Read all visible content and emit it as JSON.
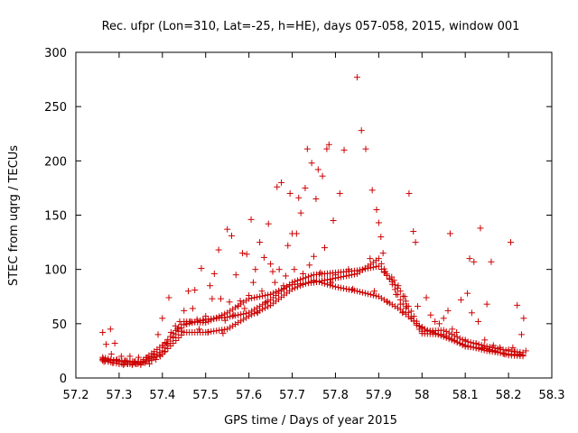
{
  "chart_data": {
    "type": "scatter",
    "title": "Rec. ufpr (Lon=310, Lat=-25, h=HE), days 057-058, 2015, window 001",
    "xlabel": "GPS time / Days of year 2015",
    "ylabel": "STEC from uqrg / TECUs",
    "xlim": [
      57.2,
      58.3
    ],
    "ylim": [
      0,
      300
    ],
    "x_ticks": [
      "57.2",
      "57.3",
      "57.4",
      "57.5",
      "57.6",
      "57.7",
      "57.8",
      "57.9",
      "58",
      "58.1",
      "58.2",
      "58.3"
    ],
    "y_ticks": [
      "0",
      "50",
      "100",
      "150",
      "200",
      "250",
      "300"
    ],
    "grid": false,
    "legend": "none",
    "marker": "plus",
    "color": "#cc0000",
    "points": [
      [
        57.262,
        42
      ],
      [
        57.263,
        18
      ],
      [
        57.265,
        15
      ],
      [
        57.27,
        31
      ],
      [
        57.275,
        16
      ],
      [
        57.28,
        45
      ],
      [
        57.282,
        22
      ],
      [
        57.285,
        14
      ],
      [
        57.29,
        32
      ],
      [
        57.295,
        17
      ],
      [
        57.3,
        13
      ],
      [
        57.305,
        20
      ],
      [
        57.31,
        12
      ],
      [
        57.315,
        16
      ],
      [
        57.32,
        13
      ],
      [
        57.325,
        20
      ],
      [
        57.33,
        12
      ],
      [
        57.335,
        15
      ],
      [
        57.34,
        13
      ],
      [
        57.345,
        19
      ],
      [
        57.35,
        12
      ],
      [
        57.355,
        15
      ],
      [
        57.36,
        14
      ],
      [
        57.365,
        19
      ],
      [
        57.37,
        13
      ],
      [
        57.375,
        16
      ],
      [
        57.38,
        22
      ],
      [
        57.385,
        17
      ],
      [
        57.39,
        40
      ],
      [
        57.395,
        20
      ],
      [
        57.4,
        55
      ],
      [
        57.402,
        30
      ],
      [
        57.405,
        24
      ],
      [
        57.41,
        32
      ],
      [
        57.415,
        74
      ],
      [
        57.42,
        42
      ],
      [
        57.425,
        38
      ],
      [
        57.43,
        48
      ],
      [
        57.435,
        45
      ],
      [
        57.44,
        52
      ],
      [
        57.445,
        43
      ],
      [
        57.45,
        62
      ],
      [
        57.455,
        50
      ],
      [
        57.46,
        80
      ],
      [
        57.465,
        52
      ],
      [
        57.47,
        64
      ],
      [
        57.475,
        81
      ],
      [
        57.48,
        54
      ],
      [
        57.485,
        45
      ],
      [
        57.49,
        101
      ],
      [
        57.495,
        53
      ],
      [
        57.5,
        57
      ],
      [
        57.505,
        42
      ],
      [
        57.51,
        85
      ],
      [
        57.515,
        73
      ],
      [
        57.52,
        96
      ],
      [
        57.525,
        55
      ],
      [
        57.53,
        118
      ],
      [
        57.535,
        73
      ],
      [
        57.54,
        41
      ],
      [
        57.545,
        53
      ],
      [
        57.55,
        137
      ],
      [
        57.555,
        70
      ],
      [
        57.56,
        131
      ],
      [
        57.565,
        58
      ],
      [
        57.57,
        95
      ],
      [
        57.575,
        66
      ],
      [
        57.58,
        71
      ],
      [
        57.585,
        115
      ],
      [
        57.59,
        64
      ],
      [
        57.595,
        114
      ],
      [
        57.6,
        76
      ],
      [
        57.605,
        146
      ],
      [
        57.61,
        88
      ],
      [
        57.615,
        100
      ],
      [
        57.62,
        60
      ],
      [
        57.625,
        125
      ],
      [
        57.63,
        80
      ],
      [
        57.635,
        111
      ],
      [
        57.64,
        70
      ],
      [
        57.645,
        142
      ],
      [
        57.65,
        105
      ],
      [
        57.655,
        98
      ],
      [
        57.66,
        88
      ],
      [
        57.665,
        176
      ],
      [
        57.67,
        100
      ],
      [
        57.675,
        180
      ],
      [
        57.68,
        85
      ],
      [
        57.685,
        94
      ],
      [
        57.69,
        122
      ],
      [
        57.695,
        170
      ],
      [
        57.7,
        133
      ],
      [
        57.705,
        100
      ],
      [
        57.71,
        133
      ],
      [
        57.715,
        166
      ],
      [
        57.72,
        152
      ],
      [
        57.725,
        96
      ],
      [
        57.73,
        175
      ],
      [
        57.735,
        211
      ],
      [
        57.74,
        104
      ],
      [
        57.745,
        198
      ],
      [
        57.75,
        112
      ],
      [
        57.755,
        165
      ],
      [
        57.76,
        192
      ],
      [
        57.765,
        97
      ],
      [
        57.77,
        186
      ],
      [
        57.775,
        120
      ],
      [
        57.78,
        211
      ],
      [
        57.785,
        215
      ],
      [
        57.79,
        88
      ],
      [
        57.795,
        145
      ],
      [
        57.8,
        95
      ],
      [
        57.81,
        170
      ],
      [
        57.82,
        210
      ],
      [
        57.83,
        100
      ],
      [
        57.84,
        82
      ],
      [
        57.85,
        277
      ],
      [
        57.86,
        228
      ],
      [
        57.87,
        211
      ],
      [
        57.88,
        110
      ],
      [
        57.885,
        173
      ],
      [
        57.89,
        80
      ],
      [
        57.895,
        155
      ],
      [
        57.9,
        143
      ],
      [
        57.905,
        130
      ],
      [
        57.91,
        115
      ],
      [
        57.915,
        98
      ],
      [
        57.92,
        70
      ],
      [
        57.93,
        93
      ],
      [
        57.935,
        90
      ],
      [
        57.94,
        77
      ],
      [
        57.945,
        85
      ],
      [
        57.95,
        68
      ],
      [
        57.955,
        60
      ],
      [
        57.96,
        75
      ],
      [
        57.965,
        66
      ],
      [
        57.97,
        170
      ],
      [
        57.975,
        55
      ],
      [
        57.98,
        135
      ],
      [
        57.985,
        125
      ],
      [
        57.99,
        66
      ],
      [
        58,
        47
      ],
      [
        58.01,
        74
      ],
      [
        58.02,
        58
      ],
      [
        58.025,
        43
      ],
      [
        58.03,
        52
      ],
      [
        58.04,
        50
      ],
      [
        58.05,
        55
      ],
      [
        58.06,
        62
      ],
      [
        58.065,
        133
      ],
      [
        58.07,
        45
      ],
      [
        58.08,
        42
      ],
      [
        58.09,
        72
      ],
      [
        58.1,
        35
      ],
      [
        58.105,
        78
      ],
      [
        58.11,
        110
      ],
      [
        58.115,
        60
      ],
      [
        58.12,
        107
      ],
      [
        58.125,
        32
      ],
      [
        58.13,
        52
      ],
      [
        58.135,
        138
      ],
      [
        58.14,
        28
      ],
      [
        58.145,
        35
      ],
      [
        58.15,
        68
      ],
      [
        58.155,
        26
      ],
      [
        58.16,
        107
      ],
      [
        58.165,
        30
      ],
      [
        58.17,
        25
      ],
      [
        58.18,
        28
      ],
      [
        58.19,
        22
      ],
      [
        58.2,
        26
      ],
      [
        58.205,
        125
      ],
      [
        58.21,
        28
      ],
      [
        58.215,
        24
      ],
      [
        58.22,
        67
      ],
      [
        58.225,
        22
      ],
      [
        58.23,
        40
      ],
      [
        58.235,
        55
      ],
      [
        58.24,
        25
      ]
    ],
    "trend_tracks": [
      [
        [
          57.262,
          16
        ],
        [
          57.3,
          13
        ],
        [
          57.35,
          13
        ],
        [
          57.4,
          22
        ],
        [
          57.45,
          42
        ],
        [
          57.5,
          42
        ],
        [
          57.55,
          45
        ],
        [
          57.6,
          57
        ],
        [
          57.65,
          67
        ],
        [
          57.7,
          82
        ],
        [
          57.75,
          90
        ],
        [
          57.8,
          84
        ],
        [
          57.85,
          80
        ],
        [
          57.9,
          75
        ],
        [
          57.95,
          63
        ],
        [
          58,
          46
        ],
        [
          58.05,
          38
        ],
        [
          58.1,
          30
        ],
        [
          58.15,
          25
        ],
        [
          58.2,
          22
        ],
        [
          58.24,
          21
        ]
      ],
      [
        [
          57.262,
          19
        ],
        [
          57.3,
          15
        ],
        [
          57.35,
          14
        ],
        [
          57.4,
          25
        ],
        [
          57.45,
          49
        ],
        [
          57.5,
          54
        ],
        [
          57.55,
          56
        ],
        [
          57.6,
          60
        ],
        [
          57.65,
          72
        ],
        [
          57.7,
          88
        ],
        [
          57.75,
          95
        ],
        [
          57.8,
          97
        ],
        [
          57.85,
          99
        ],
        [
          57.9,
          103
        ],
        [
          57.95,
          80
        ],
        [
          58,
          43
        ],
        [
          58.05,
          44
        ],
        [
          58.1,
          34
        ],
        [
          58.15,
          29
        ],
        [
          58.2,
          25
        ],
        [
          58.24,
          23
        ]
      ],
      [
        [
          57.262,
          17
        ],
        [
          57.3,
          16
        ],
        [
          57.35,
          15
        ],
        [
          57.4,
          30
        ],
        [
          57.45,
          52
        ],
        [
          57.5,
          51
        ],
        [
          57.55,
          60
        ],
        [
          57.6,
          73
        ],
        [
          57.65,
          77
        ],
        [
          57.7,
          86
        ],
        [
          57.75,
          88
        ],
        [
          57.8,
          92
        ],
        [
          57.85,
          96
        ],
        [
          57.9,
          110
        ],
        [
          57.95,
          72
        ],
        [
          58,
          41
        ],
        [
          58.05,
          40
        ],
        [
          58.1,
          29
        ],
        [
          58.15,
          27
        ],
        [
          58.2,
          21
        ],
        [
          58.24,
          20
        ]
      ]
    ]
  }
}
